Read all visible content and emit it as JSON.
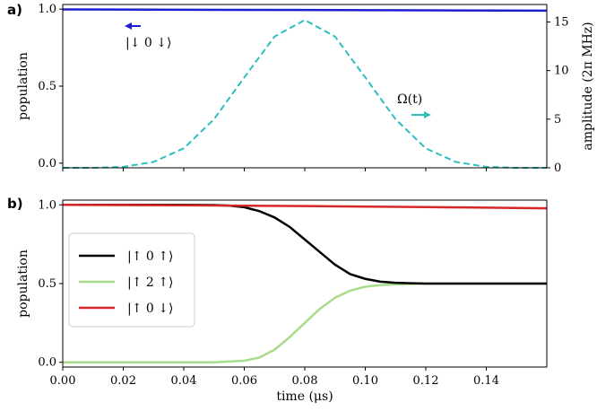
{
  "chart_data": [
    {
      "panel_label": "a)",
      "type": "line",
      "xlim": [
        0.0,
        0.16
      ],
      "ylim": [
        -0.03,
        1.03
      ],
      "ylabel": "population",
      "yticks": [
        0.0,
        0.5,
        1.0
      ],
      "ytick_labels": [
        "0.0",
        "0.5",
        "1.0"
      ],
      "y2label": "amplitude (2π MHz)",
      "y2lim": [
        0,
        16.8
      ],
      "y2ticks": [
        0,
        5,
        10,
        15
      ],
      "y2tick_labels": [
        "0",
        "5",
        "10",
        "15"
      ],
      "series": [
        {
          "name": "|↓ 0 ↓⟩",
          "axis": "left",
          "color": "#1f1fcf",
          "style": "solid",
          "x": [
            0.0,
            0.04,
            0.08,
            0.12,
            0.16
          ],
          "y": [
            0.998,
            0.996,
            0.994,
            0.992,
            0.99
          ]
        },
        {
          "name": "Ω(t)",
          "axis": "right",
          "color": "#2bbfbf",
          "style": "dashed",
          "x": [
            0.0,
            0.01,
            0.02,
            0.03,
            0.04,
            0.05,
            0.06,
            0.07,
            0.08,
            0.09,
            0.1,
            0.11,
            0.12,
            0.13,
            0.14,
            0.15,
            0.16
          ],
          "y": [
            0.0,
            0.0,
            0.1,
            0.6,
            2.0,
            5.0,
            9.3,
            13.5,
            15.2,
            13.5,
            9.3,
            5.0,
            2.0,
            0.6,
            0.1,
            0.0,
            0.0
          ]
        }
      ],
      "annotations": [
        {
          "text": "|↓ 0 ↓⟩",
          "arrow": "left",
          "color": "#1f1fcf"
        },
        {
          "text": "Ω(t)",
          "arrow": "right",
          "color": "#2bbfbf"
        }
      ]
    },
    {
      "panel_label": "b)",
      "type": "line",
      "xlabel": "time (μs)",
      "xlim": [
        0.0,
        0.16
      ],
      "xticks": [
        0.0,
        0.02,
        0.04,
        0.06,
        0.08,
        0.1,
        0.12,
        0.14
      ],
      "xtick_labels": [
        "0.00",
        "0.02",
        "0.04",
        "0.06",
        "0.08",
        "0.10",
        "0.12",
        "0.14"
      ],
      "ylim": [
        -0.03,
        1.03
      ],
      "ylabel": "population",
      "yticks": [
        0.0,
        0.5,
        1.0
      ],
      "ytick_labels": [
        "0.0",
        "0.5",
        "1.0"
      ],
      "legend_position": "center-left",
      "series": [
        {
          "name": "|↑ 0 ↑⟩",
          "color": "#000000",
          "x": [
            0.0,
            0.04,
            0.05,
            0.055,
            0.06,
            0.065,
            0.07,
            0.075,
            0.08,
            0.085,
            0.09,
            0.095,
            0.1,
            0.105,
            0.11,
            0.115,
            0.12,
            0.13,
            0.14,
            0.16
          ],
          "y": [
            1.0,
            1.0,
            0.999,
            0.995,
            0.985,
            0.96,
            0.92,
            0.86,
            0.78,
            0.7,
            0.62,
            0.56,
            0.53,
            0.512,
            0.505,
            0.502,
            0.5,
            0.5,
            0.5,
            0.5
          ]
        },
        {
          "name": "|↑ 2 ↑⟩",
          "color": "#a8dc8a",
          "x": [
            0.0,
            0.05,
            0.06,
            0.065,
            0.07,
            0.075,
            0.08,
            0.085,
            0.09,
            0.095,
            0.1,
            0.105,
            0.11,
            0.115,
            0.12,
            0.13,
            0.16
          ],
          "y": [
            0.0,
            0.0,
            0.01,
            0.03,
            0.08,
            0.16,
            0.25,
            0.34,
            0.41,
            0.455,
            0.48,
            0.49,
            0.495,
            0.498,
            0.5,
            0.5,
            0.5
          ]
        },
        {
          "name": "|↑ 0 ↓⟩",
          "color": "#d62728",
          "x": [
            0.0,
            0.04,
            0.08,
            0.12,
            0.16
          ],
          "y": [
            1.0,
            0.997,
            0.992,
            0.986,
            0.978
          ]
        }
      ]
    }
  ]
}
